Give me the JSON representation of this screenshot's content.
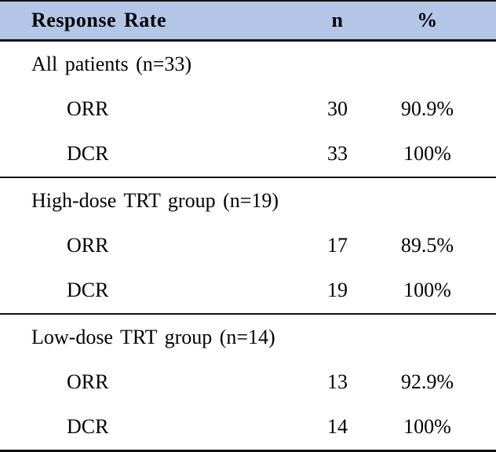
{
  "header": {
    "response_rate": "Response Rate",
    "n": "n",
    "percent": "%"
  },
  "sections": [
    {
      "label": "All patients (n=33)",
      "rows": [
        {
          "name": "ORR",
          "n": "30",
          "pct": "90.9%"
        },
        {
          "name": "DCR",
          "n": "33",
          "pct": "100%"
        }
      ]
    },
    {
      "label": "High-dose TRT group (n=19)",
      "rows": [
        {
          "name": "ORR",
          "n": "17",
          "pct": "89.5%"
        },
        {
          "name": "DCR",
          "n": "19",
          "pct": "100%"
        }
      ]
    },
    {
      "label": "Low-dose TRT group (n=14)",
      "rows": [
        {
          "name": "ORR",
          "n": "13",
          "pct": "92.9%"
        },
        {
          "name": "DCR",
          "n": "14",
          "pct": "100%"
        }
      ]
    }
  ],
  "colors": {
    "header_bg": "#b4c6e7",
    "border": "#111111",
    "text": "#000000"
  }
}
